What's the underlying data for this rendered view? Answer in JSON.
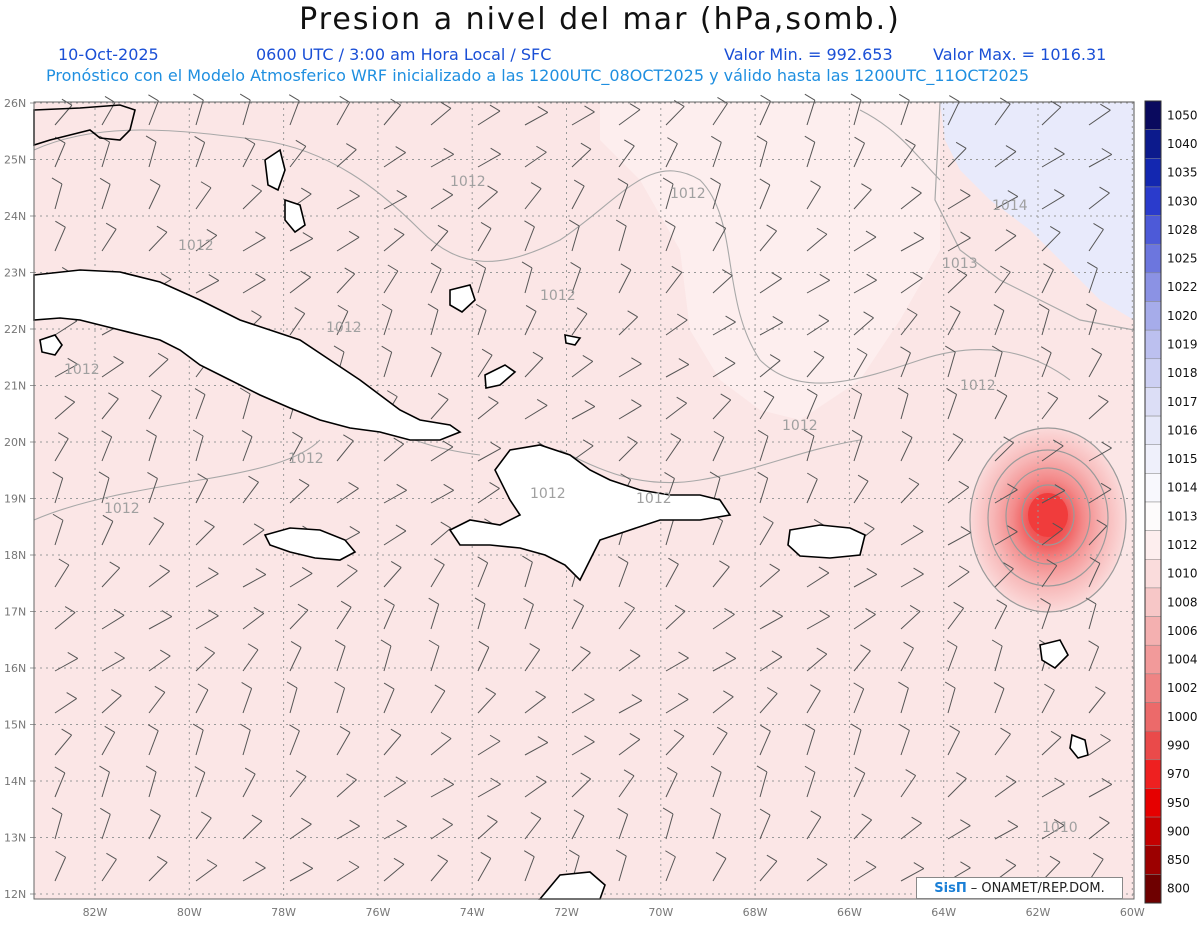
{
  "title": "Presion a nivel del mar (hPa,somb.)",
  "header": {
    "date": "10-Oct-2025",
    "time": "0600 UTC / 3:00 am Hora Local / SFC",
    "value_min": "Valor Min. = 992.653",
    "value_max": "Valor Max. = 1016.31",
    "forecast_note": "Pronóstico con el Modelo Atmosferico WRF inicializado a las 1200UTC_08OCT2025 y válido hasta las  1200UTC_11OCT2025"
  },
  "map": {
    "lat_labels": [
      "26N",
      "25N",
      "24N",
      "23N",
      "22N",
      "21N",
      "20N",
      "19N",
      "18N",
      "17N",
      "16N",
      "15N",
      "14N",
      "13N",
      "12N"
    ],
    "lon_labels": [
      "82W",
      "80W",
      "78W",
      "76W",
      "74W",
      "72W",
      "70W",
      "68W",
      "66W",
      "64W",
      "62W",
      "60W"
    ],
    "contour_labels": [
      "1012",
      "1012",
      "1012",
      "1012",
      "1012",
      "1012",
      "1012",
      "1012",
      "1012",
      "1012",
      "1012",
      "1012",
      "1013",
      "1014",
      "1010"
    ],
    "colors": {
      "background": "#fbe6e6",
      "low_center": "#f03c3c",
      "high_area": "#e7e9fb",
      "grid": "#999999",
      "coast": "#000000"
    }
  },
  "legend": {
    "levels": [
      "1050",
      "1040",
      "1035",
      "1030",
      "1028",
      "1025",
      "1022",
      "1020",
      "1019",
      "1018",
      "1017",
      "1016",
      "1015",
      "1014",
      "1013",
      "1012",
      "1010",
      "1008",
      "1006",
      "1004",
      "1002",
      "1000",
      "990",
      "970",
      "950",
      "900",
      "850",
      "800"
    ],
    "colors": [
      "#0a0a5e",
      "#0c1a8c",
      "#1327b0",
      "#2a3bcc",
      "#4d5ad8",
      "#6c76de",
      "#8b92e4",
      "#a6acea",
      "#bcc0ef",
      "#cdd0f3",
      "#dcdef6",
      "#e6e8f9",
      "#eff0fb",
      "#f8f8fd",
      "#fdfbfb",
      "#fdeeee",
      "#fadcdc",
      "#f7c7c7",
      "#f4b0b0",
      "#f29a9a",
      "#ef8484",
      "#ec6a6a",
      "#ea4a4a",
      "#ee2020",
      "#e60000",
      "#c40000",
      "#9c0000",
      "#6e0000"
    ]
  },
  "credit": {
    "brand": "SisΠ",
    "text": "– ONAMET/REP.DOM."
  }
}
